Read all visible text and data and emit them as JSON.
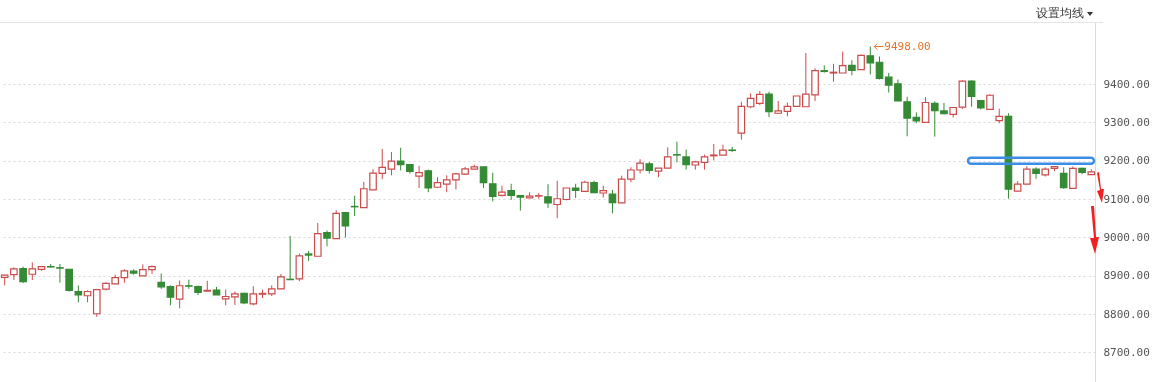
{
  "chart_data": {
    "type": "candlestick",
    "categories": [
      null,
      null,
      null,
      null,
      null,
      null,
      null,
      null,
      null,
      null,
      null,
      null,
      null,
      null,
      null,
      null,
      null,
      null,
      null,
      null,
      null,
      null,
      null,
      null,
      null,
      null,
      null,
      null,
      null,
      null,
      null,
      null,
      null,
      null,
      null,
      null,
      null,
      null,
      null,
      null,
      null,
      null,
      null,
      null,
      null,
      null,
      null,
      null,
      null,
      null,
      null,
      null,
      null,
      null,
      null,
      null,
      null,
      null,
      null,
      null,
      null,
      null,
      null,
      null,
      null,
      null,
      null,
      null,
      null,
      null,
      null,
      null,
      null,
      null,
      null,
      null,
      null,
      null,
      null,
      null,
      null,
      null,
      null,
      null,
      null,
      null,
      null,
      null,
      null,
      null,
      null,
      null,
      null,
      null,
      null,
      null,
      null,
      null,
      null,
      null,
      null,
      null,
      null,
      null,
      null,
      null,
      null,
      null,
      null,
      null,
      null,
      null,
      null,
      null,
      null,
      null,
      null,
      null,
      null
    ],
    "ohlc": [
      [
        8896,
        8903,
        8875,
        8902
      ],
      [
        8903,
        8922,
        8889,
        8918
      ],
      [
        8919,
        8924,
        8881,
        8885
      ],
      [
        8904,
        8935,
        8889,
        8918
      ],
      [
        8917,
        8925,
        8913,
        8924
      ],
      [
        8924,
        8931,
        8922,
        8923
      ],
      [
        8921,
        8931,
        8882,
        8920
      ],
      [
        8917,
        8917,
        8859,
        8862
      ],
      [
        8859,
        8875,
        8831,
        8850
      ],
      [
        8848,
        8862,
        8831,
        8859
      ],
      [
        8801,
        8866,
        8793,
        8864
      ],
      [
        8865,
        8883,
        8862,
        8880
      ],
      [
        8879,
        8903,
        8879,
        8895
      ],
      [
        8895,
        8917,
        8882,
        8913
      ],
      [
        8912,
        8917,
        8903,
        8907
      ],
      [
        8900,
        8930,
        8900,
        8916
      ],
      [
        8916,
        8927,
        8905,
        8924
      ],
      [
        8883,
        8906,
        8866,
        8871
      ],
      [
        8872,
        8875,
        8823,
        8844
      ],
      [
        8839,
        8888,
        8815,
        8874
      ],
      [
        8874,
        8890,
        8866,
        8873
      ],
      [
        8872,
        8875,
        8850,
        8857
      ],
      [
        8860,
        8887,
        8860,
        8862
      ],
      [
        8863,
        8871,
        8850,
        8850
      ],
      [
        8840,
        8864,
        8823,
        8846
      ],
      [
        8845,
        8859,
        8824,
        8853
      ],
      [
        8854,
        8856,
        8826,
        8829
      ],
      [
        8827,
        8873,
        8823,
        8853
      ],
      [
        8852,
        8864,
        8842,
        8854
      ],
      [
        8853,
        8875,
        8847,
        8866
      ],
      [
        8866,
        8905,
        8866,
        8897
      ],
      [
        8891,
        9004,
        8889,
        8890
      ],
      [
        8892,
        8958,
        8886,
        8952
      ],
      [
        8957,
        8965,
        8939,
        8954
      ],
      [
        8951,
        9038,
        8951,
        9010
      ],
      [
        9013,
        9018,
        8977,
        8998
      ],
      [
        8997,
        9071,
        8997,
        9063
      ],
      [
        9065,
        9065,
        9000,
        9030
      ],
      [
        9081,
        9109,
        9056,
        9080
      ],
      [
        9078,
        9145,
        9078,
        9127
      ],
      [
        9124,
        9178,
        9124,
        9168
      ],
      [
        9167,
        9231,
        9152,
        9183
      ],
      [
        9178,
        9223,
        9162,
        9199
      ],
      [
        9199,
        9234,
        9175,
        9190
      ],
      [
        9190,
        9192,
        9167,
        9172
      ],
      [
        9160,
        9187,
        9129,
        9169
      ],
      [
        9174,
        9177,
        9118,
        9129
      ],
      [
        9131,
        9157,
        9129,
        9143
      ],
      [
        9139,
        9162,
        9118,
        9150
      ],
      [
        9150,
        9169,
        9125,
        9166
      ],
      [
        9165,
        9184,
        9163,
        9179
      ],
      [
        9178,
        9190,
        9177,
        9184
      ],
      [
        9184,
        9184,
        9129,
        9143
      ],
      [
        9140,
        9169,
        9094,
        9107
      ],
      [
        9110,
        9135,
        9107,
        9118
      ],
      [
        9122,
        9140,
        9098,
        9110
      ],
      [
        9109,
        9109,
        9070,
        9105
      ],
      [
        9103,
        9118,
        9103,
        9108
      ],
      [
        9108,
        9116,
        9101,
        9109
      ],
      [
        9106,
        9139,
        9077,
        9090
      ],
      [
        9086,
        9148,
        9050,
        9101
      ],
      [
        9099,
        9129,
        9097,
        9129
      ],
      [
        9129,
        9140,
        9103,
        9123
      ],
      [
        9120,
        9148,
        9120,
        9144
      ],
      [
        9143,
        9148,
        9117,
        9117
      ],
      [
        9116,
        9135,
        9104,
        9122
      ],
      [
        9113,
        9124,
        9063,
        9091
      ],
      [
        9090,
        9161,
        9090,
        9152
      ],
      [
        9152,
        9183,
        9144,
        9176
      ],
      [
        9176,
        9204,
        9167,
        9194
      ],
      [
        9192,
        9197,
        9167,
        9175
      ],
      [
        9173,
        9181,
        9157,
        9181
      ],
      [
        9181,
        9235,
        9181,
        9210
      ],
      [
        9216,
        9250,
        9196,
        9215
      ],
      [
        9210,
        9229,
        9177,
        9190
      ],
      [
        9189,
        9200,
        9177,
        9197
      ],
      [
        9196,
        9216,
        9177,
        9210
      ],
      [
        9213,
        9244,
        9201,
        9215
      ],
      [
        9215,
        9242,
        9215,
        9228
      ],
      [
        9228,
        9236,
        9223,
        9227
      ],
      [
        9272,
        9354,
        9255,
        9342
      ],
      [
        9341,
        9376,
        9337,
        9363
      ],
      [
        9350,
        9382,
        9345,
        9373
      ],
      [
        9374,
        9380,
        9314,
        9328
      ],
      [
        9324,
        9356,
        9324,
        9330
      ],
      [
        9329,
        9352,
        9316,
        9342
      ],
      [
        9342,
        9369,
        9342,
        9369
      ],
      [
        9341,
        9481,
        9341,
        9374
      ],
      [
        9372,
        9441,
        9356,
        9435
      ],
      [
        9435,
        9449,
        9430,
        9433
      ],
      [
        9429,
        9453,
        9406,
        9431
      ],
      [
        9429,
        9485,
        9429,
        9448
      ],
      [
        9449,
        9462,
        9423,
        9436
      ],
      [
        9438,
        9477,
        9438,
        9475
      ],
      [
        9474,
        9498,
        9425,
        9455
      ],
      [
        9457,
        9472,
        9412,
        9415
      ],
      [
        9418,
        9429,
        9378,
        9397
      ],
      [
        9401,
        9412,
        9356,
        9356
      ],
      [
        9354,
        9367,
        9264,
        9311
      ],
      [
        9313,
        9326,
        9298,
        9304
      ],
      [
        9300,
        9366,
        9300,
        9352
      ],
      [
        9350,
        9355,
        9263,
        9331
      ],
      [
        9330,
        9351,
        9321,
        9323
      ],
      [
        9321,
        9339,
        9313,
        9339
      ],
      [
        9340,
        9410,
        9335,
        9408
      ],
      [
        9408,
        9410,
        9341,
        9368
      ],
      [
        9357,
        9357,
        9334,
        9338
      ],
      [
        9334,
        9374,
        9334,
        9371
      ],
      [
        9305,
        9336,
        9298,
        9316
      ],
      [
        9316,
        9324,
        9101,
        9126
      ],
      [
        9121,
        9147,
        9121,
        9139
      ],
      [
        9139,
        9186,
        9139,
        9178
      ],
      [
        9178,
        9183,
        9153,
        9167
      ],
      [
        9163,
        9183,
        9159,
        9178
      ],
      [
        9180,
        9186,
        9173,
        9185
      ],
      [
        9167,
        9183,
        9127,
        9130
      ],
      [
        9128,
        9185,
        9128,
        9180
      ],
      [
        9180,
        9182,
        9165,
        9170
      ],
      [
        9164,
        9178,
        9163,
        9171
      ]
    ],
    "colors": [
      "#cc4b4b",
      "#cc4b4b",
      "#358a35",
      "#cc4b4b",
      "#cc4b4b",
      "#358a35",
      "#358a35",
      "#358a35",
      "#358a35",
      "#cc4b4b",
      "#cc4b4b",
      "#cc4b4b",
      "#cc4b4b",
      "#cc4b4b",
      "#358a35",
      "#cc4b4b",
      "#cc4b4b",
      "#358a35",
      "#358a35",
      "#cc4b4b",
      "#358a35",
      "#358a35",
      "#cc4b4b",
      "#358a35",
      "#cc4b4b",
      "#cc4b4b",
      "#358a35",
      "#cc4b4b",
      "#cc4b4b",
      "#cc4b4b",
      "#cc4b4b",
      "#358a35",
      "#cc4b4b",
      "#358a35",
      "#cc4b4b",
      "#358a35",
      "#cc4b4b",
      "#358a35",
      "#358a35",
      "#cc4b4b",
      "#cc4b4b",
      "#cc4b4b",
      "#cc4b4b",
      "#358a35",
      "#358a35",
      "#cc4b4b",
      "#358a35",
      "#cc4b4b",
      "#cc4b4b",
      "#cc4b4b",
      "#cc4b4b",
      "#cc4b4b",
      "#358a35",
      "#358a35",
      "#cc4b4b",
      "#358a35",
      "#358a35",
      "#cc4b4b",
      "#cc4b4b",
      "#358a35",
      "#cc4b4b",
      "#cc4b4b",
      "#358a35",
      "#cc4b4b",
      "#358a35",
      "#cc4b4b",
      "#358a35",
      "#cc4b4b",
      "#cc4b4b",
      "#cc4b4b",
      "#358a35",
      "#cc4b4b",
      "#cc4b4b",
      "#358a35",
      "#358a35",
      "#cc4b4b",
      "#cc4b4b",
      "#cc4b4b",
      "#cc4b4b",
      "#358a35",
      "#cc4b4b",
      "#cc4b4b",
      "#cc4b4b",
      "#358a35",
      "#cc4b4b",
      "#cc4b4b",
      "#cc4b4b",
      "#cc4b4b",
      "#cc4b4b",
      "#358a35",
      "#cc4b4b",
      "#cc4b4b",
      "#358a35",
      "#cc4b4b",
      "#358a35",
      "#358a35",
      "#358a35",
      "#358a35",
      "#358a35",
      "#358a35",
      "#cc4b4b",
      "#358a35",
      "#358a35",
      "#cc4b4b",
      "#cc4b4b",
      "#358a35",
      "#358a35",
      "#cc4b4b",
      "#cc4b4b",
      "#358a35",
      "#cc4b4b",
      "#cc4b4b",
      "#358a35",
      "#cc4b4b",
      "#cc4b4b",
      "#358a35",
      "#cc4b4b",
      "#358a35",
      "#cc4b4b"
    ],
    "ylim": [
      8623,
      9562
    ],
    "yticks": [
      {
        "value": 8700,
        "label": "8700.00"
      },
      {
        "value": 8800,
        "label": "8800.00"
      },
      {
        "value": 8900,
        "label": "8900.00"
      },
      {
        "value": 9000,
        "label": "9000.00"
      },
      {
        "value": 9100,
        "label": "9100.00"
      },
      {
        "value": 9200,
        "label": "9200.00"
      },
      {
        "value": 9300,
        "label": "9300.00"
      },
      {
        "value": 9400,
        "label": "9400.00"
      }
    ],
    "grid": "y",
    "tick_labels": "y",
    "annotations": [
      "设置均线",
      "9498.00"
    ]
  }
}
